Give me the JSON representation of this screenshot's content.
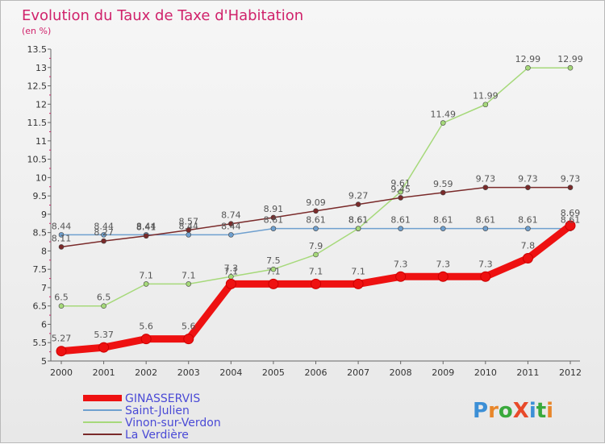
{
  "chart_data": {
    "type": "line",
    "title": "Evolution du Taux de Taxe d'Habitation",
    "subtitle": "(en %)",
    "x": [
      "2000",
      "2001",
      "2002",
      "2003",
      "2004",
      "2005",
      "2006",
      "2007",
      "2008",
      "2009",
      "2010",
      "2011",
      "2012"
    ],
    "ylim": [
      5,
      13.5
    ],
    "yticks": [
      5,
      5.5,
      6,
      6.5,
      7,
      7.5,
      8,
      8.5,
      9,
      9.5,
      10,
      10.5,
      11,
      11.5,
      12,
      12.5,
      13,
      13.5
    ],
    "grid": false,
    "legend_placement": "bottom-left",
    "series": [
      {
        "name": "Saint-Julien",
        "color": "#6fa0cf",
        "values": [
          8.44,
          8.44,
          8.44,
          8.44,
          8.44,
          8.61,
          8.61,
          8.61,
          8.61,
          8.61,
          8.61,
          8.61,
          8.61
        ]
      },
      {
        "name": "Vinon-sur-Verdon",
        "color": "#a6d97a",
        "values": [
          6.5,
          6.5,
          7.1,
          7.1,
          7.3,
          7.5,
          7.9,
          8.61,
          9.61,
          11.49,
          11.99,
          12.99,
          12.99
        ]
      },
      {
        "name": "La Verdière",
        "color": "#7a2a2a",
        "values": [
          8.11,
          8.27,
          8.41,
          8.57,
          8.74,
          8.91,
          9.09,
          9.27,
          9.45,
          9.59,
          9.73,
          9.73,
          9.73
        ]
      },
      {
        "name": "GINASSERVIS",
        "color": "#ee1111",
        "values": [
          5.27,
          5.37,
          5.6,
          5.6,
          7.1,
          7.1,
          7.1,
          7.1,
          7.3,
          7.3,
          7.3,
          7.8,
          8.69
        ]
      }
    ]
  },
  "brand": {
    "text": "ProXiti",
    "letter_colors": [
      "#3c8fd6",
      "#e8862a",
      "#39a93c",
      "#e84a2a",
      "#3c8fd6",
      "#39a93c",
      "#e8862a"
    ]
  }
}
